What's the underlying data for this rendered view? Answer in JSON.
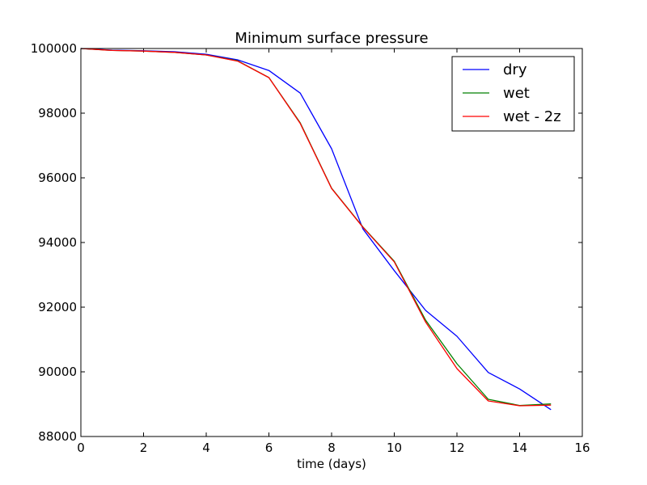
{
  "chart_data": {
    "type": "line",
    "title": "Minimum surface pressure",
    "xlabel": "time (days)",
    "ylabel": "",
    "xlim": [
      0,
      16
    ],
    "ylim": [
      88000,
      100000
    ],
    "xticks": [
      0,
      2,
      4,
      6,
      8,
      10,
      12,
      14,
      16
    ],
    "yticks": [
      88000,
      90000,
      92000,
      94000,
      96000,
      98000,
      100000
    ],
    "xtick_labels": [
      "0",
      "2",
      "4",
      "6",
      "8",
      "10",
      "12",
      "14",
      "16"
    ],
    "ytick_labels": [
      "88000",
      "90000",
      "92000",
      "94000",
      "96000",
      "98000",
      "100000"
    ],
    "grid": false,
    "legend_position": "top-right",
    "x": [
      0,
      1,
      2,
      3,
      4,
      5,
      6,
      7,
      8,
      9,
      10,
      11,
      12,
      13,
      14,
      15
    ],
    "series": [
      {
        "name": "dry",
        "color": "#0000ff",
        "values": [
          100000,
          99950,
          99930,
          99900,
          99820,
          99650,
          99320,
          98620,
          96900,
          94420,
          93130,
          91900,
          91100,
          89980,
          89470,
          88830
        ]
      },
      {
        "name": "wet",
        "color": "#008000",
        "values": [
          100000,
          99940,
          99920,
          99880,
          99800,
          99620,
          99100,
          97700,
          95680,
          94480,
          93420,
          91600,
          90250,
          89150,
          88960,
          89010
        ]
      },
      {
        "name": "wet - 2z",
        "color": "#ff0000",
        "values": [
          100000,
          99940,
          99920,
          99880,
          99800,
          99610,
          99100,
          97680,
          95670,
          94470,
          93400,
          91540,
          90100,
          89100,
          88950,
          88970
        ]
      }
    ]
  }
}
